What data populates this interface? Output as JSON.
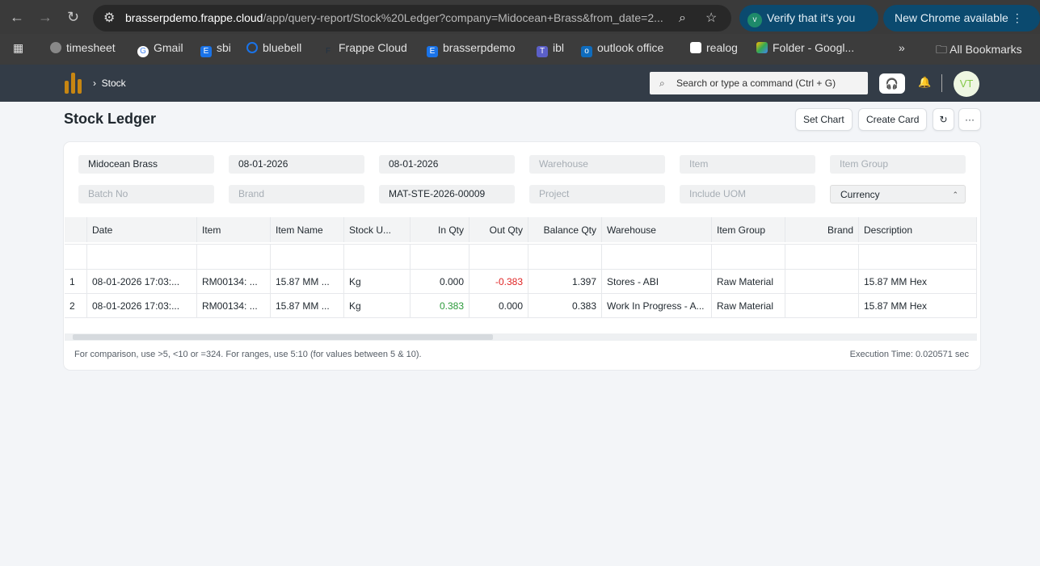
{
  "browser": {
    "url_host": "brasserpdemo.frappe.cloud",
    "url_path": "/app/query-report/Stock%20Ledger?company=Midocean+Brass&from_date=2...",
    "verify": "Verify that it's you",
    "update": "New Chrome available",
    "bookmarks": [
      "timesheet",
      "Gmail",
      "sbi",
      "bluebell",
      "Frappe Cloud",
      "brasserpdemo",
      "ibl",
      "outlook office",
      "realog",
      "Folder - Googl..."
    ],
    "all_bookmarks": "All Bookmarks"
  },
  "navbar": {
    "breadcrumb": "Stock",
    "search_placeholder": "Search or type a command (Ctrl + G)",
    "avatar": "VT"
  },
  "page": {
    "title": "Stock Ledger",
    "buttons": {
      "set_chart": "Set Chart",
      "create_card": "Create Card",
      "refresh": "↻",
      "more": "···"
    }
  },
  "filters": [
    {
      "value": "Midocean Brass"
    },
    {
      "value": "08-01-2026"
    },
    {
      "value": "08-01-2026"
    },
    {
      "placeholder": "Warehouse"
    },
    {
      "placeholder": "Item"
    },
    {
      "placeholder": "Item Group"
    },
    {
      "placeholder": "Batch No"
    },
    {
      "placeholder": "Brand"
    },
    {
      "value": "MAT-STE-2026-00009"
    },
    {
      "placeholder": "Project"
    },
    {
      "placeholder": "Include UOM"
    },
    {
      "value": "Currency"
    }
  ],
  "table": {
    "columns": [
      "Date",
      "Item",
      "Item Name",
      "Stock U...",
      "In Qty",
      "Out Qty",
      "Balance Qty",
      "Warehouse",
      "Item Group",
      "Brand",
      "Description"
    ],
    "rows": [
      {
        "idx": "1",
        "cells": [
          "08-01-2026 17:03:...",
          "RM00134: ...",
          "15.87 MM ...",
          "Kg",
          "0.000",
          "-0.383",
          "1.397",
          "Stores - ABI",
          "Raw Material",
          "",
          "15.87 MM Hex"
        ]
      },
      {
        "idx": "2",
        "cells": [
          "08-01-2026 17:03:...",
          "RM00134: ...",
          "15.87 MM ...",
          "Kg",
          "0.383",
          "0.000",
          "0.383",
          "Work In Progress - A...",
          "Raw Material",
          "",
          "15.87 MM Hex"
        ]
      }
    ]
  },
  "footer": {
    "hint": "For comparison, use >5, <10 or =324. For ranges, use 5:10 (for values between 5 & 10).",
    "exec_time": "Execution Time: 0.020571 sec"
  }
}
